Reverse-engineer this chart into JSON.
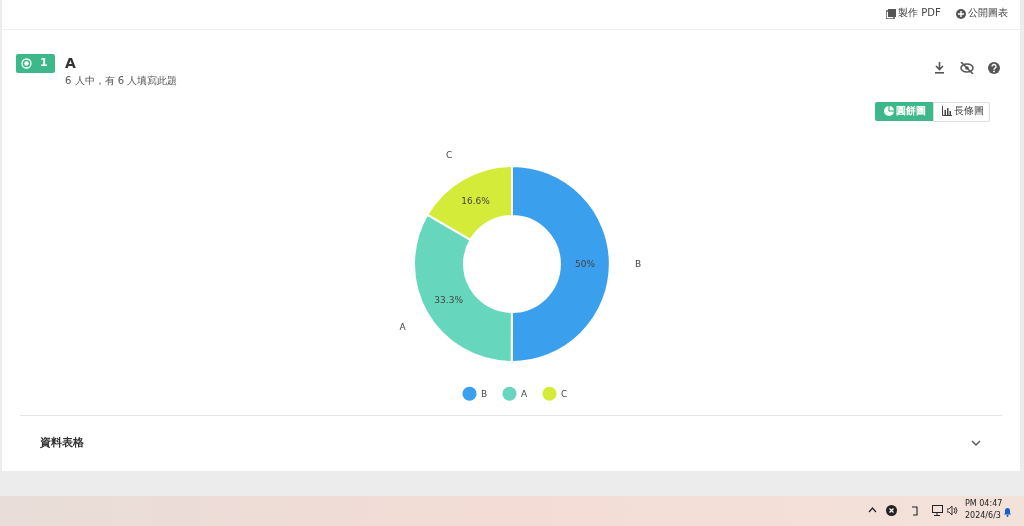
{
  "chart_data": {
    "type": "donut",
    "title": "A",
    "subtitle": "6 人中，有 6 人填寫此題",
    "categories": [
      "B",
      "A",
      "C"
    ],
    "values": [
      50,
      33.3,
      16.6
    ],
    "value_labels": [
      "50%",
      "33.3%",
      "16.6%"
    ],
    "colors": [
      "#3a9fec",
      "#66d7bd",
      "#d4eb3a"
    ],
    "legend": "bottom",
    "annotations": [
      "製作 PDF",
      "公開圖表",
      "1",
      "圓餅圖",
      "長條圖",
      "資料表格",
      "PM 04:47",
      "2024/6/3"
    ]
  }
}
